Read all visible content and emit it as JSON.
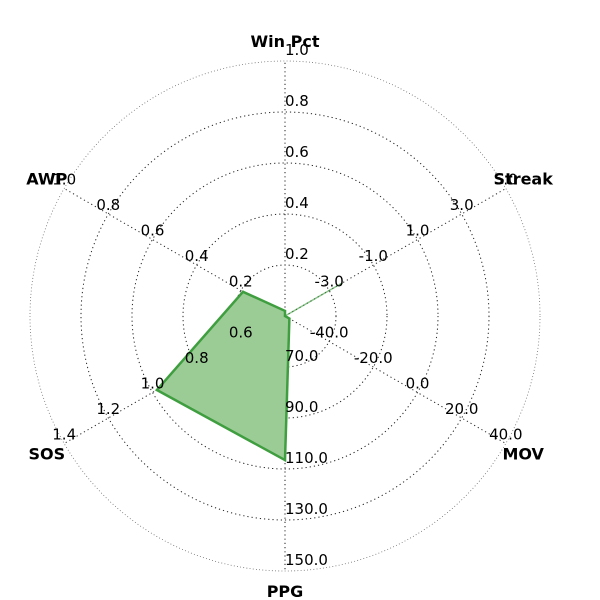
{
  "chart_data": {
    "type": "radar",
    "title": "",
    "grid": true,
    "axes": [
      {
        "name": "Win Pct",
        "ticks": [
          "0.2",
          "0.4",
          "0.6",
          "0.8",
          "1.0"
        ],
        "min": 0.0,
        "max": 1.0
      },
      {
        "name": "Streak",
        "ticks": [
          "-3.0",
          "-1.0",
          "1.0",
          "3.0",
          "5.0"
        ],
        "min": -5.0,
        "max": 5.0
      },
      {
        "name": "MOV",
        "ticks": [
          "-40.0",
          "-20.0",
          "0.0",
          "20.0",
          "40.0"
        ],
        "min": -60.0,
        "max": 40.0
      },
      {
        "name": "PPG",
        "ticks": [
          "70.0",
          "90.0",
          "110.0",
          "130.0",
          "150.0"
        ],
        "min": 50.0,
        "max": 150.0
      },
      {
        "name": "SOS",
        "ticks": [
          "0.6",
          "0.8",
          "1.0",
          "1.2",
          "1.4"
        ],
        "min": 0.4,
        "max": 1.4
      },
      {
        "name": "AWP",
        "ticks": [
          "0.2",
          "0.4",
          "0.6",
          "0.8",
          "1.0"
        ],
        "min": 0.0,
        "max": 1.0
      }
    ],
    "series": [
      {
        "values": [
          0.02,
          -5.0,
          -58.0,
          106.5,
          0.98,
          0.19
        ],
        "color": "#3f9e3f",
        "fill": "#9ccc96"
      }
    ]
  }
}
